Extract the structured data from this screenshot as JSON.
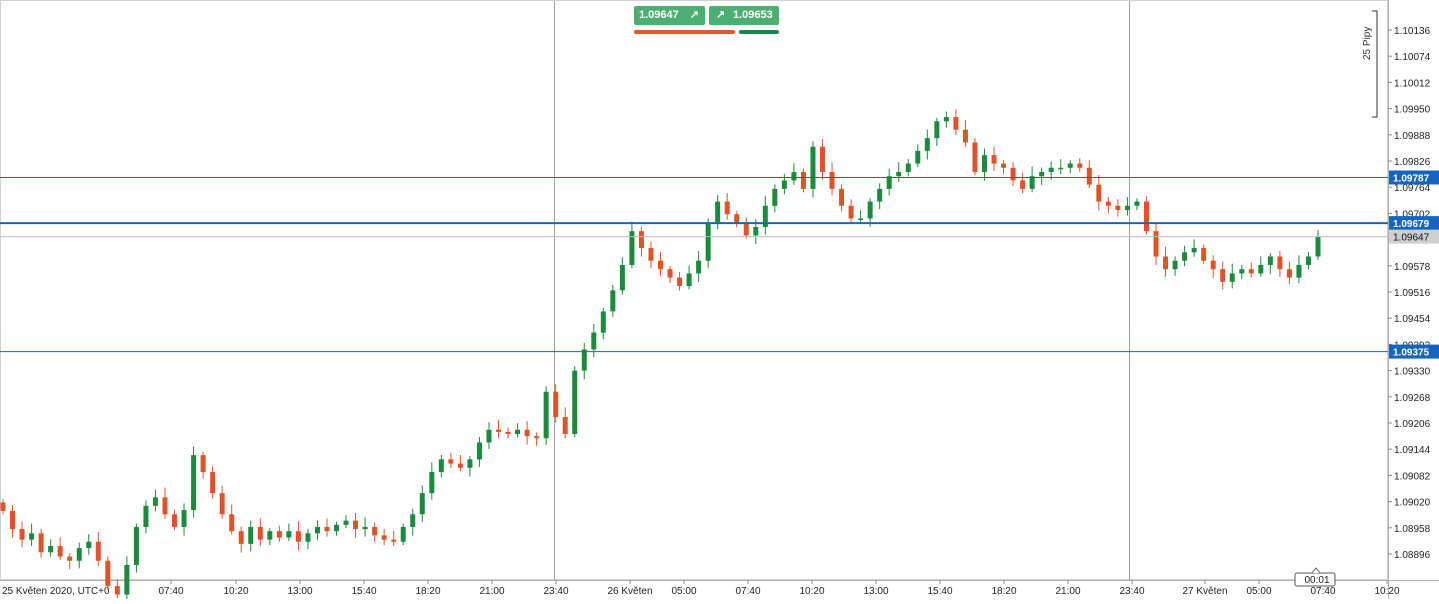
{
  "chart_data": {
    "type": "candlestick",
    "y_ticks": [
      "1.10136",
      "1.10074",
      "1.10012",
      "1.09950",
      "1.09888",
      "1.09826",
      "1.09764",
      "1.09702",
      "1.09640",
      "1.09578",
      "1.09516",
      "1.09454",
      "1.09392",
      "1.09330",
      "1.09268",
      "1.09206",
      "1.09144",
      "1.09082",
      "1.09020",
      "1.08958",
      "1.08896"
    ],
    "ylim": [
      1.0883,
      1.1022
    ],
    "x_ticks": [
      "25 Květen 2020, UTC+0",
      "07:40",
      "10:20",
      "13:00",
      "15:40",
      "18:20",
      "21:00",
      "23:40",
      "26 Květen",
      "05:00",
      "07:40",
      "10:20",
      "13:00",
      "15:40",
      "18:20",
      "21:00",
      "23:40",
      "27 Květen",
      "05:00",
      "07:40",
      "10:20"
    ],
    "session_separators": [
      "23:40",
      "23:40"
    ],
    "horizontal_levels": [
      {
        "value": 1.09787,
        "label": "1.09787",
        "color": "#1565c0"
      },
      {
        "value": 1.09679,
        "label": "1.09679",
        "color": "#1565c0"
      },
      {
        "value": 1.09375,
        "label": "1.09375",
        "color": "#1565c0"
      }
    ],
    "current_price": {
      "value": 1.09647,
      "label": "1.09647"
    },
    "scale_indicator": "25 Pipy",
    "time_cursor": "00:01",
    "up_color": "#1a8a3c",
    "down_color": "#e0532a",
    "close_path": [
      1.08998,
      1.08955,
      1.0893,
      1.08945,
      1.089,
      1.08915,
      1.0889,
      1.0888,
      1.0891,
      1.08925,
      1.0888,
      1.0882,
      1.088,
      1.0887,
      1.0896,
      1.0901,
      1.0903,
      1.0899,
      1.0896,
      1.09,
      1.0913,
      1.0909,
      1.0904,
      1.0899,
      1.0895,
      1.0892,
      1.0896,
      1.0893,
      1.0895,
      1.08935,
      1.0895,
      1.08925,
      1.08945,
      1.0896,
      1.0895,
      1.08965,
      1.08975,
      1.08955,
      1.0896,
      1.0894,
      1.0893,
      1.08925,
      1.0896,
      1.0899,
      1.0904,
      1.0909,
      1.0912,
      1.0911,
      1.091,
      1.0912,
      1.0916,
      1.0919,
      1.09185,
      1.0918,
      1.0919,
      1.09175,
      1.0917,
      1.0928,
      1.0922,
      1.0918,
      1.0933,
      1.0938,
      1.0942,
      1.0947,
      1.0952,
      1.0958,
      1.0966,
      1.0962,
      1.0959,
      1.0957,
      1.0955,
      1.0953,
      1.0956,
      1.0959,
      1.0968,
      1.0973,
      1.097,
      1.0968,
      1.0965,
      1.0967,
      1.0972,
      1.0976,
      1.0978,
      1.098,
      1.0976,
      1.0986,
      1.098,
      1.0976,
      1.0972,
      1.0969,
      1.0969,
      1.0973,
      1.0976,
      1.0979,
      1.098,
      1.0982,
      1.0985,
      1.0988,
      1.0992,
      1.0993,
      1.099,
      1.0987,
      1.098,
      1.0984,
      1.0982,
      1.0981,
      1.0978,
      1.0976,
      1.0979,
      1.098,
      1.0981,
      1.0981,
      1.0982,
      1.0981,
      1.0977,
      1.0973,
      1.0972,
      1.0971,
      1.0972,
      1.0973,
      1.0966,
      1.096,
      1.0957,
      1.0959,
      1.0961,
      1.0962,
      1.0959,
      1.0957,
      1.0954,
      1.0956,
      1.0957,
      1.0956,
      1.0958,
      1.096,
      1.0957,
      1.0955,
      1.0958,
      1.096,
      1.09647
    ]
  },
  "quote": {
    "bid": "1.09647",
    "ask": "1.09653"
  }
}
